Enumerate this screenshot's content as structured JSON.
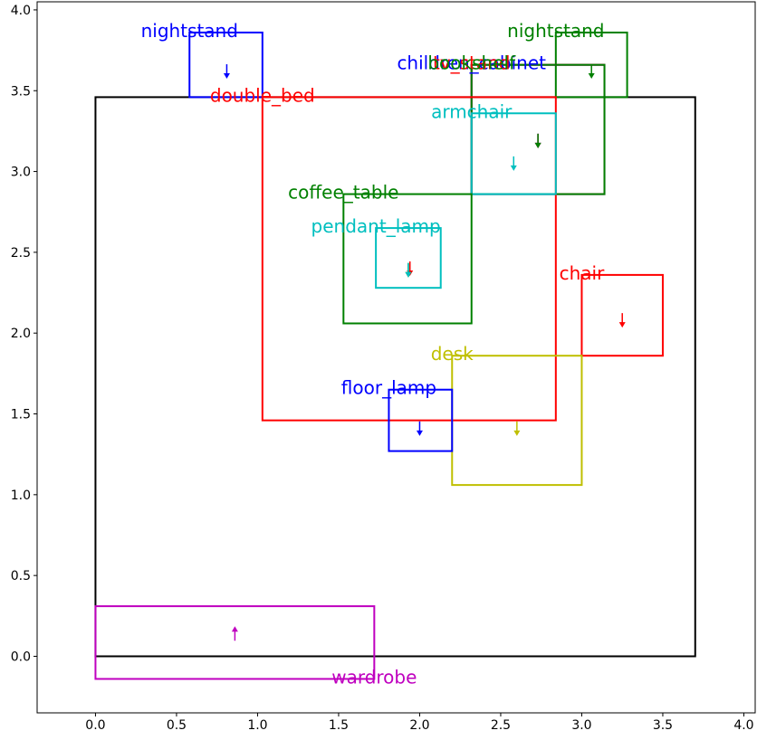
{
  "chart_data": {
    "type": "scatter",
    "title": "",
    "xlabel": "",
    "ylabel": "",
    "xlim": [
      -0.36,
      4.07
    ],
    "ylim": [
      -0.35,
      4.05
    ],
    "grid": false,
    "legend": "none",
    "xticks": [
      0.0,
      0.5,
      1.0,
      1.5,
      2.0,
      2.5,
      3.0,
      3.5,
      4.0
    ],
    "yticks": [
      0.0,
      0.5,
      1.0,
      1.5,
      2.0,
      2.5,
      3.0,
      3.5,
      4.0
    ],
    "xtick_labels": [
      "0.0",
      "0.5",
      "1.0",
      "1.5",
      "2.0",
      "2.5",
      "3.0",
      "3.5",
      "4.0"
    ],
    "ytick_labels": [
      "0.0",
      "0.5",
      "1.0",
      "1.5",
      "2.0",
      "2.5",
      "3.0",
      "3.5",
      "4.0"
    ],
    "room": {
      "x0": 0.0,
      "y0": 0.0,
      "x1": 3.7,
      "y1": 3.46,
      "color": "#000000"
    },
    "objects": [
      {
        "label": "nightstand",
        "color": "#0000ff",
        "x0": 0.58,
        "y0": 3.46,
        "x1": 1.03,
        "y1": 3.86,
        "cx": 0.81,
        "cy": 3.63,
        "dir": "down",
        "tx": 0.58,
        "ty": 3.86
      },
      {
        "label": "nightstand",
        "color": "#008000",
        "x0": 2.84,
        "y0": 3.46,
        "x1": 3.28,
        "y1": 3.86,
        "cx": 3.06,
        "cy": 3.63,
        "dir": "down",
        "tx": 2.84,
        "ty": 3.86
      },
      {
        "label": "children_cabinet",
        "color": "#0000ff",
        "x0": 2.32,
        "y0": 2.86,
        "x1": 3.14,
        "y1": 3.66,
        "cx": 2.73,
        "cy": 3.2,
        "dir": "down",
        "tx": 2.32,
        "ty": 3.66
      },
      {
        "label": "tv_stand",
        "color": "#ff0000",
        "x0": 2.32,
        "y0": 2.86,
        "x1": 3.14,
        "y1": 3.66,
        "cx": 2.73,
        "cy": 3.2,
        "dir": "down",
        "tx": 2.32,
        "ty": 3.66
      },
      {
        "label": "bookshelf",
        "color": "#008000",
        "x0": 2.32,
        "y0": 2.86,
        "x1": 3.14,
        "y1": 3.66,
        "cx": 2.73,
        "cy": 3.2,
        "dir": "down",
        "tx": 2.32,
        "ty": 3.66
      },
      {
        "label": "double_bed",
        "color": "#ff0000",
        "x0": 1.03,
        "y0": 1.46,
        "x1": 2.84,
        "y1": 3.46,
        "cx": 1.94,
        "cy": 2.41,
        "dir": "down",
        "tx": 1.03,
        "ty": 3.46
      },
      {
        "label": "armchair",
        "color": "#00bfbf",
        "x0": 2.32,
        "y0": 2.86,
        "x1": 2.84,
        "y1": 3.36,
        "cx": 2.58,
        "cy": 3.06,
        "dir": "down",
        "tx": 2.32,
        "ty": 3.36
      },
      {
        "label": "coffee_table",
        "color": "#008000",
        "x0": 1.53,
        "y0": 2.06,
        "x1": 2.32,
        "y1": 2.86,
        "cx": 1.93,
        "cy": 2.4,
        "dir": "down",
        "tx": 1.53,
        "ty": 2.86
      },
      {
        "label": "pendant_lamp",
        "color": "#00bfbf",
        "x0": 1.73,
        "y0": 2.28,
        "x1": 2.13,
        "y1": 2.65,
        "cx": 1.93,
        "cy": 2.4,
        "dir": "down",
        "tx": 1.73,
        "ty": 2.65
      },
      {
        "label": "chair",
        "color": "#ff0000",
        "x0": 3.0,
        "y0": 1.86,
        "x1": 3.5,
        "y1": 2.36,
        "cx": 3.25,
        "cy": 2.09,
        "dir": "down",
        "tx": 3.0,
        "ty": 2.36
      },
      {
        "label": "desk",
        "color": "#bfbf00",
        "x0": 2.2,
        "y0": 1.06,
        "x1": 3.0,
        "y1": 1.86,
        "cx": 2.6,
        "cy": 1.42,
        "dir": "down",
        "tx": 2.2,
        "ty": 1.86
      },
      {
        "label": "floor_lamp",
        "color": "#0000ff",
        "x0": 1.81,
        "y0": 1.27,
        "x1": 2.2,
        "y1": 1.65,
        "cx": 2.0,
        "cy": 1.42,
        "dir": "down",
        "tx": 1.81,
        "ty": 1.65
      },
      {
        "label": "wardrobe",
        "color": "#bf00bf",
        "x0": 0.0,
        "y0": -0.14,
        "x1": 1.72,
        "y1": 0.31,
        "cx": 0.86,
        "cy": 0.13,
        "dir": "up",
        "tx": 1.72,
        "ty": -0.14
      }
    ]
  }
}
